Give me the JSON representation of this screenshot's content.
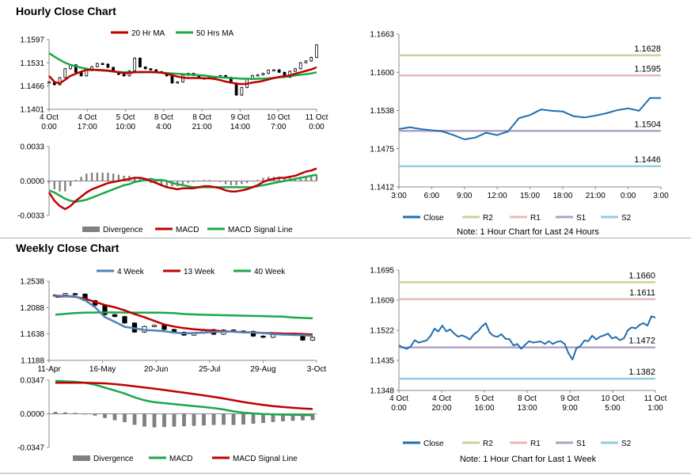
{
  "sections": {
    "hourly_title": "Hourly Close Chart",
    "weekly_title": "Weekly Close Chart"
  },
  "colors": {
    "ma20": "#c00000",
    "ma50": "#1aa84a",
    "macd": "#c00000",
    "signal": "#1aa84a",
    "week4": "#4f81bd",
    "week13": "#c00000",
    "week40": "#1aa84a",
    "close": "#1f6fb0",
    "r2": "#c3d69b",
    "r1": "#e6b9b8",
    "s1": "#b3a2c7",
    "s2": "#93cddd",
    "divergence": "#808080"
  },
  "chart_data": [
    {
      "id": "hourly_price",
      "type": "line",
      "title": "",
      "legend": [
        "20 Hr MA",
        "50 Hrs MA"
      ],
      "ytick_labels": [
        "1.1597",
        "1.1531",
        "1.1466",
        "1.1401"
      ],
      "xtick_labels": [
        [
          "4 Oct",
          "0:00"
        ],
        [
          "4 Oct",
          "17:00"
        ],
        [
          "5 Oct",
          "10:00"
        ],
        [
          "8 Oct",
          "4:00"
        ],
        [
          "8 Oct",
          "21:00"
        ],
        [
          "9 Oct",
          "14:00"
        ],
        [
          "10 Oct",
          "7:00"
        ],
        [
          "11 Oct",
          "0:00"
        ]
      ],
      "ylim": [
        1.1401,
        1.1597
      ],
      "close": [
        1.1478,
        1.147,
        1.149,
        1.1515,
        1.1526,
        1.1505,
        1.1495,
        1.151,
        1.1521,
        1.153,
        1.1528,
        1.1519,
        1.1507,
        1.1499,
        1.1495,
        1.1509,
        1.1545,
        1.152,
        1.1515,
        1.1512,
        1.1507,
        1.1503,
        1.1495,
        1.1475,
        1.1478,
        1.1497,
        1.1502,
        1.1496,
        1.1489,
        1.1488,
        1.1492,
        1.1492,
        1.1496,
        1.1491,
        1.1475,
        1.1441,
        1.1462,
        1.1488,
        1.1496,
        1.1498,
        1.1502,
        1.1511,
        1.1512,
        1.1505,
        1.1491,
        1.1508,
        1.1515,
        1.1532,
        1.1537,
        1.1547,
        1.1582
      ],
      "ma20": [
        1.1495,
        1.1478,
        1.1474,
        1.1484,
        1.1495,
        1.1501,
        1.1507,
        1.1512,
        1.1512,
        1.1512,
        1.1511,
        1.151,
        1.1508,
        1.1505,
        1.1503,
        1.1503,
        1.1505,
        1.1506,
        1.1506,
        1.1506,
        1.1505,
        1.1504,
        1.1501,
        1.1497,
        1.1493,
        1.149,
        1.1489,
        1.1489,
        1.1489,
        1.1488,
        1.1488,
        1.1486,
        1.1483,
        1.1479,
        1.1476,
        1.1473,
        1.1472,
        1.1473,
        1.1476,
        1.1478,
        1.1481,
        1.1485,
        1.1489,
        1.1492,
        1.1494,
        1.1496,
        1.1501,
        1.1505,
        1.1509,
        1.1513,
        1.1519
      ],
      "ma50": [
        1.1559,
        1.1549,
        1.154,
        1.1532,
        1.1526,
        1.1522,
        1.1518,
        1.1515,
        1.1513,
        1.1511,
        1.151,
        1.1509,
        1.1507,
        1.1506,
        1.1505,
        1.1505,
        1.1505,
        1.1505,
        1.1505,
        1.1505,
        1.1505,
        1.1504,
        1.1503,
        1.1502,
        1.1501,
        1.15,
        1.1499,
        1.1498,
        1.1497,
        1.1496,
        1.1494,
        1.1492,
        1.1491,
        1.149,
        1.1489,
        1.1488,
        1.1487,
        1.1487,
        1.1486,
        1.1487,
        1.1487,
        1.1488,
        1.1489,
        1.1491,
        1.1492,
        1.1494,
        1.1496,
        1.1498,
        1.15,
        1.1502,
        1.1505
      ]
    },
    {
      "id": "hourly_macd",
      "type": "line",
      "legend": [
        "Divergence",
        "MACD",
        "MACD Signal Line"
      ],
      "ytick_labels": [
        "0.0033",
        "0.0000",
        "-0.0033"
      ],
      "ylim": [
        -0.0033,
        0.0033
      ],
      "macd": [
        -0.0011,
        -0.0019,
        -0.0024,
        -0.0027,
        -0.0024,
        -0.0019,
        -0.0015,
        -0.0011,
        -0.0008,
        -0.0006,
        -0.0004,
        -0.0002,
        -0.0001,
        0.0,
        0.0001,
        0.0002,
        0.0003,
        0.0003,
        0.0002,
        0.0,
        -0.0002,
        -0.0004,
        -0.0006,
        -0.0007,
        -0.0008,
        -0.0007,
        -0.0007,
        -0.0007,
        -0.0006,
        -0.0005,
        -0.0005,
        -0.0006,
        -0.0007,
        -0.0009,
        -0.001,
        -0.001,
        -0.0009,
        -0.0008,
        -0.0006,
        -0.0004,
        -0.0001,
        0.0001,
        0.0002,
        0.0003,
        0.0003,
        0.0004,
        0.0005,
        0.0007,
        0.0009,
        0.001,
        0.0012
      ],
      "signal": [
        -0.0009,
        -0.0011,
        -0.0014,
        -0.0017,
        -0.0019,
        -0.002,
        -0.0019,
        -0.0018,
        -0.0016,
        -0.0014,
        -0.0012,
        -0.001,
        -0.0008,
        -0.0006,
        -0.0004,
        -0.0003,
        -0.0001,
        0.0,
        0.0001,
        0.0002,
        0.0001,
        0.0001,
        0.0,
        -0.0002,
        -0.0003,
        -0.0004,
        -0.0005,
        -0.0006,
        -0.0006,
        -0.0006,
        -0.0006,
        -0.0006,
        -0.0006,
        -0.0006,
        -0.0006,
        -0.0006,
        -0.0006,
        -0.0006,
        -0.0006,
        -0.0005,
        -0.0004,
        -0.0003,
        -0.0002,
        -0.0001,
        0.0,
        0.0001,
        0.0002,
        0.0003,
        0.0004,
        0.0005,
        0.0006
      ]
    },
    {
      "id": "hourly_pivot",
      "type": "line",
      "legend": [
        "Close",
        "R2",
        "R1",
        "S1",
        "S2"
      ],
      "note": "Note: 1 Hour Chart for Last 24 Hours",
      "ytick_labels": [
        "1.1663",
        "1.1600",
        "1.1538",
        "1.1475",
        "1.1412"
      ],
      "xtick_labels": [
        "3:00",
        "6:00",
        "9:00",
        "12:00",
        "15:00",
        "18:00",
        "21:00",
        "0:00",
        "3:00"
      ],
      "ylim": [
        1.1412,
        1.1663
      ],
      "levels": [
        {
          "name": "R2",
          "value": 1.1628,
          "label": "1.1628"
        },
        {
          "name": "R1",
          "value": 1.1595,
          "label": "1.1595"
        },
        {
          "name": "S1",
          "value": 1.1504,
          "label": "1.1504"
        },
        {
          "name": "S2",
          "value": 1.1446,
          "label": "1.1446"
        }
      ],
      "close": [
        1.1507,
        1.151,
        1.1507,
        1.1505,
        1.1503,
        1.1497,
        1.149,
        1.1493,
        1.1501,
        1.1497,
        1.1503,
        1.1525,
        1.153,
        1.1539,
        1.1537,
        1.1536,
        1.1528,
        1.1526,
        1.1529,
        1.1533,
        1.1538,
        1.1541,
        1.1537,
        1.1558,
        1.1558
      ]
    },
    {
      "id": "weekly_price",
      "type": "line",
      "legend": [
        "4 Week",
        "13 Week",
        "40 Week"
      ],
      "ytick_labels": [
        "1.2538",
        "1.2088",
        "1.1638",
        "1.1188"
      ],
      "xtick_labels": [
        "11-Apr",
        "16-May",
        "20-Jun",
        "25-Jul",
        "29-Aug",
        "3-Oct"
      ],
      "ylim": [
        1.1188,
        1.2538
      ],
      "close": [
        1.2302,
        1.2326,
        1.2318,
        1.2207,
        1.2127,
        1.1968,
        1.1935,
        1.1825,
        1.167,
        1.1765,
        1.1785,
        1.1715,
        1.1668,
        1.1618,
        1.1655,
        1.1712,
        1.1633,
        1.1705,
        1.1688,
        1.1683,
        1.1602,
        1.1581,
        1.1624,
        1.1642,
        1.1632,
        1.1534,
        1.1579
      ],
      "w4": [
        1.2292,
        1.2285,
        1.2278,
        1.2212,
        1.2095,
        1.1925,
        1.1845,
        1.176,
        1.1735,
        1.1705,
        1.1697,
        1.1685,
        1.166,
        1.1648,
        1.1655,
        1.166,
        1.167,
        1.1678,
        1.168,
        1.1665,
        1.1665,
        1.1655,
        1.1638,
        1.1628,
        1.1622,
        1.1618,
        1.1608
      ],
      "w13": [
        1.2272,
        1.2282,
        1.2272,
        1.2237,
        1.2185,
        1.2132,
        1.2092,
        1.2041,
        1.1977,
        1.1923,
        1.186,
        1.18,
        1.1765,
        1.1738,
        1.1718,
        1.1705,
        1.1697,
        1.1684,
        1.1676,
        1.1668,
        1.1662,
        1.1655,
        1.1652,
        1.1645,
        1.1643,
        1.1638,
        1.163
      ],
      "w40": [
        1.1965,
        1.1982,
        1.1994,
        1.2002,
        1.2004,
        1.2005,
        1.2005,
        1.2004,
        1.2002,
        1.2002,
        1.2002,
        1.2,
        1.1992,
        1.1978,
        1.1971,
        1.1965,
        1.1961,
        1.1958,
        1.1953,
        1.195,
        1.1945,
        1.1942,
        1.1937,
        1.1935,
        1.1918,
        1.1912,
        1.1905
      ]
    },
    {
      "id": "weekly_macd",
      "type": "line",
      "legend": [
        "Divergence",
        "MACD",
        "MACD Signal Line"
      ],
      "ytick_labels": [
        "0.0347",
        "0.0000",
        "-0.0347"
      ],
      "ylim": [
        -0.0347,
        0.0347
      ],
      "macd": [
        0.034,
        0.0335,
        0.033,
        0.032,
        0.03,
        0.027,
        0.024,
        0.021,
        0.017,
        0.014,
        0.012,
        0.011,
        0.01,
        0.009,
        0.008,
        0.007,
        0.006,
        0.0045,
        0.0025,
        0.0012,
        0.0004,
        -0.0002,
        -0.0005,
        -0.0008,
        -0.001,
        -0.0012,
        -0.0015
      ],
      "signal": [
        0.032,
        0.032,
        0.032,
        0.032,
        0.0318,
        0.0314,
        0.0306,
        0.0296,
        0.0284,
        0.0272,
        0.026,
        0.0246,
        0.0232,
        0.0218,
        0.0204,
        0.019,
        0.0175,
        0.0158,
        0.014,
        0.0122,
        0.0106,
        0.0092,
        0.008,
        0.007,
        0.0062,
        0.0055,
        0.005
      ]
    },
    {
      "id": "weekly_pivot",
      "type": "line",
      "legend": [
        "Close",
        "R2",
        "R1",
        "S1",
        "S2"
      ],
      "note": "Note: 1 Hour Chart for Last 1 Week",
      "ytick_labels": [
        "1.1695",
        "1.1609",
        "1.1522",
        "1.1435",
        "1.1348"
      ],
      "xtick_labels": [
        [
          "4 Oct",
          "0:00"
        ],
        [
          "4 Oct",
          "20:00"
        ],
        [
          "5 Oct",
          "16:00"
        ],
        [
          "8 Oct",
          "13:00"
        ],
        [
          "9 Oct",
          "9:00"
        ],
        [
          "10 Oct",
          "5:00"
        ],
        [
          "11 Oct",
          "1:00"
        ]
      ],
      "ylim": [
        1.1348,
        1.1695
      ],
      "levels": [
        {
          "name": "R2",
          "value": 1.166,
          "label": "1.1660"
        },
        {
          "name": "R1",
          "value": 1.1611,
          "label": "1.1611"
        },
        {
          "name": "S1",
          "value": 1.1472,
          "label": "1.1472"
        },
        {
          "name": "S2",
          "value": 1.1382,
          "label": "1.1382"
        }
      ],
      "close": [
        1.1478,
        1.1472,
        1.1468,
        1.1475,
        1.1493,
        1.1486,
        1.1489,
        1.1492,
        1.1505,
        1.1526,
        1.1518,
        1.1535,
        1.1518,
        1.1524,
        1.1512,
        1.1503,
        1.1507,
        1.1502,
        1.1495,
        1.151,
        1.1518,
        1.1532,
        1.1542,
        1.1515,
        1.1505,
        1.1503,
        1.151,
        1.1497,
        1.1496,
        1.1478,
        1.1482,
        1.1468,
        1.148,
        1.149,
        1.1486,
        1.1488,
        1.1489,
        1.1482,
        1.149,
        1.1482,
        1.1488,
        1.149,
        1.1482,
        1.1455,
        1.1437,
        1.147,
        1.1476,
        1.1492,
        1.149,
        1.1506,
        1.1495,
        1.1503,
        1.1507,
        1.1512,
        1.1498,
        1.1502,
        1.1493,
        1.1498,
        1.1521,
        1.153,
        1.1527,
        1.1537,
        1.1542,
        1.1535,
        1.1562,
        1.1558
      ]
    }
  ]
}
